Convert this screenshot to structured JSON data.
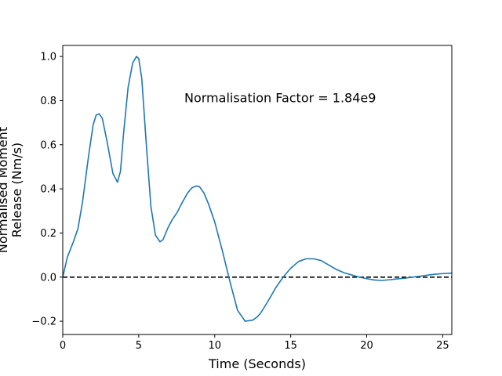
{
  "chart_data": {
    "type": "line",
    "title": "",
    "xlabel": "Time (Seconds)",
    "ylabel_lines": [
      "Normalised Moment",
      "Release (Nm/s)"
    ],
    "xlim": [
      0,
      25.6
    ],
    "ylim": [
      -0.26,
      1.05
    ],
    "x_ticks": [
      0,
      5,
      10,
      15,
      20,
      25
    ],
    "x_tick_labels": [
      "0",
      "5",
      "10",
      "15",
      "20",
      "25"
    ],
    "y_ticks": [
      -0.2,
      0.0,
      0.2,
      0.4,
      0.6,
      0.8,
      1.0
    ],
    "y_tick_labels": [
      "−0.2",
      "0.0",
      "0.2",
      "0.4",
      "0.6",
      "0.8",
      "1.0"
    ],
    "grid": false,
    "annotation": {
      "text": "Normalisation Factor = 1.84e9",
      "x": 8.0,
      "y": 0.81
    },
    "reference_line": {
      "y": 0.0,
      "style": "dashed",
      "color": "#000000"
    },
    "series": [
      {
        "color": "#1f77b4",
        "x": [
          0,
          0.3,
          0.7,
          1.0,
          1.3,
          1.7,
          2.0,
          2.2,
          2.4,
          2.6,
          2.9,
          3.3,
          3.6,
          3.8,
          4.0,
          4.3,
          4.6,
          4.85,
          5.0,
          5.2,
          5.5,
          5.8,
          6.1,
          6.4,
          6.6,
          6.9,
          7.2,
          7.5,
          7.8,
          8.2,
          8.5,
          8.8,
          9.0,
          9.3,
          9.6,
          10.0,
          10.5,
          11.0,
          11.5,
          12.0,
          12.5,
          12.8,
          13.0,
          13.5,
          14.0,
          14.5,
          15.0,
          15.5,
          16.0,
          16.5,
          17.0,
          17.5,
          18.0,
          18.5,
          19.0,
          19.5,
          20.0,
          20.5,
          21.0,
          21.5,
          22.0,
          22.5,
          23.0,
          23.5,
          24.0,
          24.5,
          25.0,
          25.6
        ],
        "y": [
          0.0,
          0.09,
          0.16,
          0.22,
          0.34,
          0.55,
          0.69,
          0.735,
          0.74,
          0.72,
          0.62,
          0.47,
          0.43,
          0.48,
          0.65,
          0.86,
          0.97,
          1.0,
          0.99,
          0.9,
          0.6,
          0.32,
          0.19,
          0.16,
          0.17,
          0.22,
          0.26,
          0.29,
          0.33,
          0.38,
          0.405,
          0.413,
          0.41,
          0.38,
          0.33,
          0.25,
          0.12,
          -0.02,
          -0.15,
          -0.2,
          -0.195,
          -0.18,
          -0.165,
          -0.11,
          -0.05,
          0.0,
          0.04,
          0.07,
          0.083,
          0.083,
          0.075,
          0.055,
          0.035,
          0.02,
          0.01,
          0.0,
          -0.007,
          -0.013,
          -0.015,
          -0.012,
          -0.008,
          -0.005,
          0.0,
          0.004,
          0.009,
          0.013,
          0.016,
          0.018
        ]
      }
    ]
  }
}
